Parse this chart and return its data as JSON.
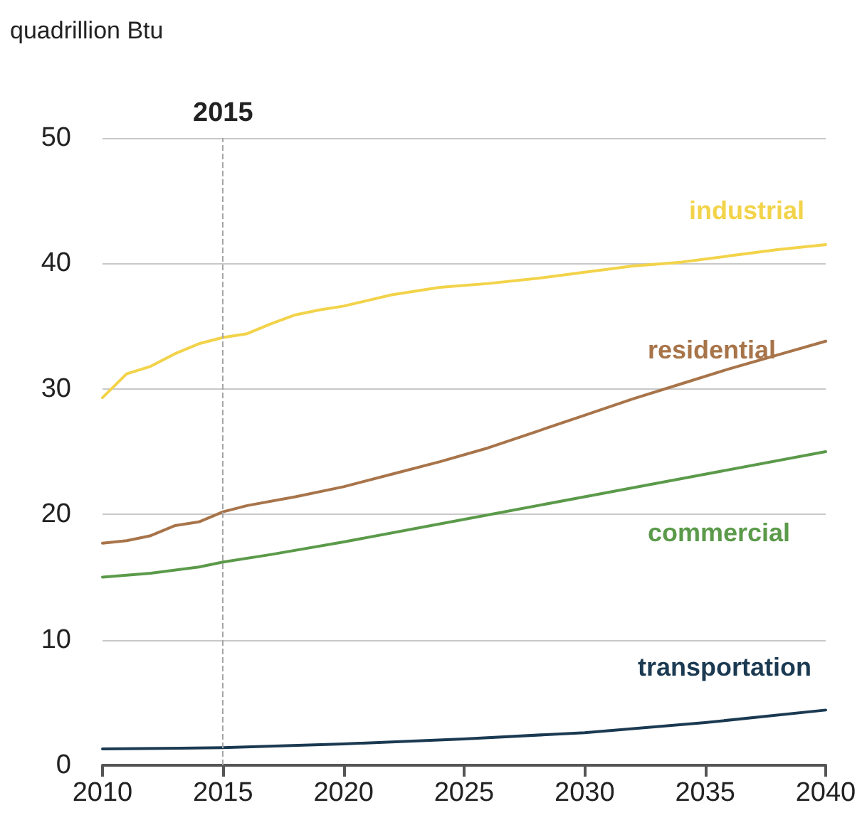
{
  "chart_data": {
    "type": "line",
    "ylabel": "quadrillion Btu",
    "xlim": [
      2010,
      2040
    ],
    "xticks": [
      2010,
      2015,
      2020,
      2025,
      2030,
      2035,
      2040
    ],
    "ylim": [
      0,
      50
    ],
    "yticks": [
      0,
      10,
      20,
      30,
      40,
      50
    ],
    "grid": "y",
    "legend": false,
    "marker": "none",
    "line_style": "solid",
    "ref_lines": [
      {
        "axis": "x",
        "value": 2015,
        "label": "2015",
        "color": "#a6a6a6",
        "line_style": "dashed"
      }
    ],
    "series": [
      {
        "name": "industrial",
        "color": "#f2d34a",
        "x": [
          2010,
          2011,
          2012,
          2013,
          2014,
          2015,
          2016,
          2017,
          2018,
          2019,
          2020,
          2022,
          2024,
          2026,
          2028,
          2030,
          2032,
          2034,
          2036,
          2038,
          2040
        ],
        "values": [
          29.3,
          31.2,
          31.8,
          32.8,
          33.6,
          34.1,
          34.4,
          35.2,
          35.9,
          36.3,
          36.6,
          37.5,
          38.1,
          38.4,
          38.8,
          39.3,
          39.8,
          40.1,
          40.6,
          41.1,
          41.5
        ]
      },
      {
        "name": "residential",
        "color": "#a8744a",
        "x": [
          2010,
          2011,
          2012,
          2013,
          2014,
          2015,
          2016,
          2018,
          2020,
          2022,
          2024,
          2026,
          2028,
          2030,
          2032,
          2034,
          2036,
          2038,
          2040
        ],
        "values": [
          17.7,
          17.9,
          18.3,
          19.1,
          19.4,
          20.2,
          20.7,
          21.4,
          22.2,
          23.2,
          24.2,
          25.3,
          26.6,
          27.9,
          29.2,
          30.4,
          31.6,
          32.7,
          33.8
        ]
      },
      {
        "name": "commercial",
        "color": "#5b9a4a",
        "x": [
          2010,
          2012,
          2014,
          2015,
          2017,
          2020,
          2025,
          2030,
          2035,
          2040
        ],
        "values": [
          15.0,
          15.3,
          15.8,
          16.2,
          16.8,
          17.8,
          19.6,
          21.4,
          23.2,
          25.0
        ]
      },
      {
        "name": "transportation",
        "color": "#1b3a52",
        "x": [
          2010,
          2015,
          2020,
          2025,
          2030,
          2035,
          2040
        ],
        "values": [
          1.3,
          1.4,
          1.7,
          2.1,
          2.6,
          3.4,
          4.4
        ]
      }
    ]
  }
}
